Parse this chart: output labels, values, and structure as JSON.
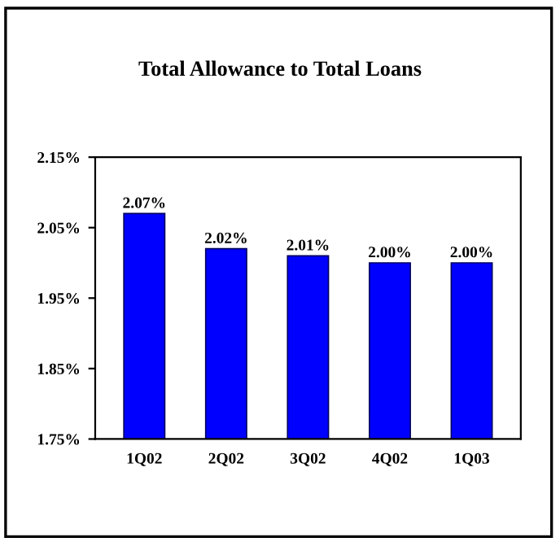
{
  "chart_data": {
    "type": "bar",
    "title": "Total Allowance to Total Loans",
    "categories": [
      "1Q02",
      "2Q02",
      "3Q02",
      "4Q02",
      "1Q03"
    ],
    "values": [
      2.07,
      2.02,
      2.01,
      2.0,
      2.0
    ],
    "value_labels": [
      "2.07%",
      "2.02%",
      "2.01%",
      "2.00%",
      "2.00%"
    ],
    "color": "#0000ff",
    "ylim": [
      1.75,
      2.15
    ],
    "yticks": [
      {
        "value": 1.75,
        "label": "1.75%"
      },
      {
        "value": 1.85,
        "label": "1.85%"
      },
      {
        "value": 1.95,
        "label": "1.95%"
      },
      {
        "value": 2.05,
        "label": "2.05%"
      },
      {
        "value": 2.15,
        "label": "2.15%"
      }
    ],
    "grid": false,
    "legend": false
  }
}
